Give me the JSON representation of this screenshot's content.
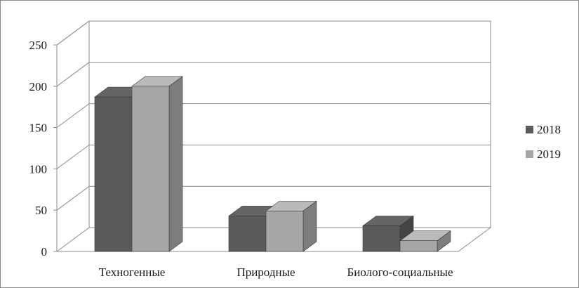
{
  "chart_data": {
    "type": "bar",
    "categories": [
      "Техногенные",
      "Природные",
      "Биолого-социальные"
    ],
    "series": [
      {
        "name": "2018",
        "values": [
          187,
          43,
          31
        ],
        "color": "#5a5a5a"
      },
      {
        "name": "2019",
        "values": [
          200,
          49,
          13
        ],
        "color": "#a6a6a6"
      }
    ],
    "ylim": [
      0,
      250
    ],
    "yticks": [
      0,
      50,
      100,
      150,
      200,
      250
    ],
    "grid": true,
    "legend": "right",
    "style": "3d-column"
  }
}
